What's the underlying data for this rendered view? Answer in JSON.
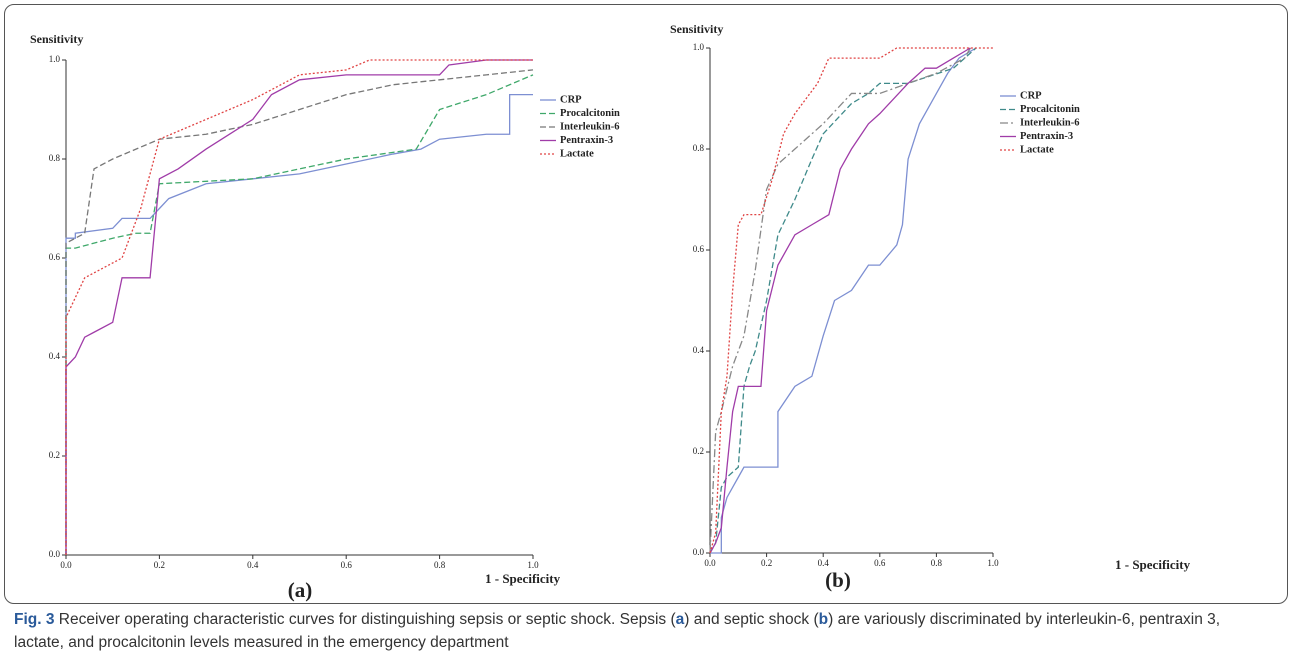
{
  "chart_data": [
    {
      "type": "line",
      "y_label": "Sensitivity",
      "x_label": "1 - Specificity",
      "panel_label": "(a)",
      "xlim": [
        0,
        1
      ],
      "ylim": [
        0,
        1
      ],
      "xticks": [
        {
          "value": 0,
          "label": "0.0"
        },
        {
          "value": 0.2,
          "label": "0.2"
        },
        {
          "value": 0.4,
          "label": "0.4"
        },
        {
          "value": 0.6,
          "label": "0.6"
        },
        {
          "value": 0.8,
          "label": "0.8"
        },
        {
          "value": 1,
          "label": "1.0"
        }
      ],
      "yticks": [
        {
          "value": 0,
          "label": "0.0"
        },
        {
          "value": 0.2,
          "label": "0.2"
        },
        {
          "value": 0.4,
          "label": "0.4"
        },
        {
          "value": 0.6,
          "label": "0.6"
        },
        {
          "value": 0.8,
          "label": "0.8"
        },
        {
          "value": 1,
          "label": "1.0"
        }
      ],
      "series": [
        {
          "name": "CRP",
          "color": "#7d8fd2",
          "dash": "solid",
          "x": [
            0,
            0,
            0,
            0.02,
            0.02,
            0.1,
            0.12,
            0.18,
            0.2,
            0.22,
            0.3,
            0.4,
            0.5,
            0.6,
            0.7,
            0.76,
            0.8,
            0.9,
            0.95,
            0.95,
            1.0
          ],
          "values": [
            0,
            0.58,
            0.64,
            0.64,
            0.65,
            0.66,
            0.68,
            0.68,
            0.7,
            0.72,
            0.75,
            0.76,
            0.77,
            0.79,
            0.81,
            0.82,
            0.84,
            0.85,
            0.85,
            0.93,
            0.93
          ]
        },
        {
          "name": "Procalcitonin",
          "color": "#3fa86a",
          "dash": "dashed",
          "x": [
            0,
            0,
            0.02,
            0.1,
            0.15,
            0.18,
            0.2,
            0.4,
            0.6,
            0.75,
            0.8,
            0.9,
            0.95,
            1.0
          ],
          "values": [
            0,
            0.62,
            0.62,
            0.64,
            0.65,
            0.65,
            0.75,
            0.76,
            0.8,
            0.82,
            0.9,
            0.93,
            0.95,
            0.97
          ]
        },
        {
          "name": "Interleukin-6",
          "color": "#777777",
          "dash": "dashed",
          "x": [
            0,
            0,
            0.04,
            0.06,
            0.1,
            0.2,
            0.3,
            0.4,
            0.5,
            0.6,
            0.7,
            0.8,
            0.9,
            1.0
          ],
          "values": [
            0,
            0.63,
            0.65,
            0.78,
            0.8,
            0.84,
            0.85,
            0.87,
            0.9,
            0.93,
            0.95,
            0.96,
            0.97,
            0.98
          ]
        },
        {
          "name": "Pentraxin-3",
          "color": "#a03ca8",
          "dash": "solid",
          "x": [
            0,
            0,
            0.02,
            0.04,
            0.06,
            0.1,
            0.12,
            0.18,
            0.2,
            0.24,
            0.3,
            0.4,
            0.44,
            0.5,
            0.6,
            0.8,
            0.82,
            0.9,
            1.0
          ],
          "values": [
            0,
            0.38,
            0.4,
            0.44,
            0.45,
            0.47,
            0.56,
            0.56,
            0.76,
            0.78,
            0.82,
            0.88,
            0.93,
            0.96,
            0.97,
            0.97,
            0.99,
            1.0,
            1.0
          ]
        },
        {
          "name": "Lactate",
          "color": "#e04444",
          "dash": "dotted",
          "x": [
            0,
            0,
            0.02,
            0.04,
            0.06,
            0.12,
            0.16,
            0.2,
            0.3,
            0.4,
            0.5,
            0.6,
            0.65,
            0.7,
            1.0
          ],
          "values": [
            0,
            0.48,
            0.52,
            0.56,
            0.57,
            0.6,
            0.7,
            0.84,
            0.88,
            0.92,
            0.97,
            0.98,
            1.0,
            1.0,
            1.0
          ]
        }
      ]
    },
    {
      "type": "line",
      "y_label": "Sensitivity",
      "x_label": "1 - Specificity",
      "panel_label": "(b)",
      "xlim": [
        0,
        1
      ],
      "ylim": [
        0,
        1
      ],
      "xticks": [
        {
          "value": 0,
          "label": "0.0"
        },
        {
          "value": 0.2,
          "label": "0.2"
        },
        {
          "value": 0.4,
          "label": "0.4"
        },
        {
          "value": 0.6,
          "label": "0.6"
        },
        {
          "value": 0.8,
          "label": "0.8"
        },
        {
          "value": 1,
          "label": "1.0"
        }
      ],
      "yticks": [
        {
          "value": 0,
          "label": "0.0"
        },
        {
          "value": 0.2,
          "label": "0.2"
        },
        {
          "value": 0.4,
          "label": "0.4"
        },
        {
          "value": 0.6,
          "label": "0.6"
        },
        {
          "value": 0.8,
          "label": "0.8"
        },
        {
          "value": 1,
          "label": "1.0"
        }
      ],
      "series": [
        {
          "name": "CRP",
          "color": "#7d8fd2",
          "dash": "solid",
          "x": [
            0,
            0.04,
            0.04,
            0.06,
            0.08,
            0.1,
            0.12,
            0.24,
            0.24,
            0.3,
            0.36,
            0.4,
            0.44,
            0.5,
            0.56,
            0.6,
            0.66,
            0.68,
            0.7,
            0.74,
            0.78,
            0.8,
            0.84,
            0.88,
            0.94
          ],
          "values": [
            0,
            0,
            0.07,
            0.11,
            0.13,
            0.15,
            0.17,
            0.17,
            0.28,
            0.33,
            0.35,
            0.43,
            0.5,
            0.52,
            0.57,
            0.57,
            0.61,
            0.65,
            0.78,
            0.85,
            0.89,
            0.91,
            0.95,
            0.98,
            1.0
          ]
        },
        {
          "name": "Procalcitonin",
          "color": "#3f8a8a",
          "dash": "dashed",
          "x": [
            0,
            0.02,
            0.04,
            0.06,
            0.1,
            0.12,
            0.14,
            0.16,
            0.2,
            0.24,
            0.3,
            0.36,
            0.4,
            0.5,
            0.56,
            0.6,
            0.7,
            0.86,
            0.9,
            0.94
          ],
          "values": [
            0,
            0.02,
            0.13,
            0.15,
            0.17,
            0.33,
            0.37,
            0.4,
            0.5,
            0.63,
            0.7,
            0.78,
            0.83,
            0.89,
            0.91,
            0.93,
            0.93,
            0.96,
            0.98,
            1.0
          ]
        },
        {
          "name": "Interleukin-6",
          "color": "#888888",
          "dash": "dashdot",
          "x": [
            0,
            0.02,
            0.04,
            0.08,
            0.12,
            0.16,
            0.2,
            0.24,
            0.3,
            0.4,
            0.5,
            0.6,
            0.7,
            0.8,
            0.9,
            0.92
          ],
          "values": [
            0,
            0.24,
            0.28,
            0.37,
            0.43,
            0.56,
            0.72,
            0.77,
            0.8,
            0.85,
            0.91,
            0.91,
            0.93,
            0.95,
            0.98,
            1.0
          ]
        },
        {
          "name": "Pentraxin-3",
          "color": "#a03ca8",
          "dash": "solid",
          "x": [
            0,
            0.02,
            0.04,
            0.06,
            0.08,
            0.1,
            0.18,
            0.2,
            0.24,
            0.3,
            0.36,
            0.42,
            0.46,
            0.5,
            0.56,
            0.6,
            0.7,
            0.76,
            0.8,
            0.86,
            0.92
          ],
          "values": [
            0,
            0.02,
            0.05,
            0.17,
            0.28,
            0.33,
            0.33,
            0.48,
            0.57,
            0.63,
            0.65,
            0.67,
            0.76,
            0.8,
            0.85,
            0.87,
            0.93,
            0.96,
            0.96,
            0.98,
            1.0
          ]
        },
        {
          "name": "Lactate",
          "color": "#e04444",
          "dash": "dotted",
          "x": [
            0,
            0.02,
            0.04,
            0.06,
            0.08,
            0.1,
            0.12,
            0.18,
            0.22,
            0.26,
            0.3,
            0.34,
            0.38,
            0.42,
            0.6,
            0.66,
            1.0
          ],
          "values": [
            0,
            0.04,
            0.28,
            0.35,
            0.52,
            0.65,
            0.67,
            0.67,
            0.74,
            0.83,
            0.87,
            0.9,
            0.93,
            0.98,
            0.98,
            1.0,
            1.0
          ]
        }
      ]
    }
  ],
  "caption": {
    "label": "Fig. 3",
    "segments": [
      "Receiver operating characteristic curves for distinguishing sepsis or septic shock. Sepsis (",
      "a",
      ") and septic shock (",
      "b",
      ") are variously discriminated by interleukin-6, pentraxin 3, lactate, and procalcitonin levels measured in the emergency department"
    ]
  }
}
